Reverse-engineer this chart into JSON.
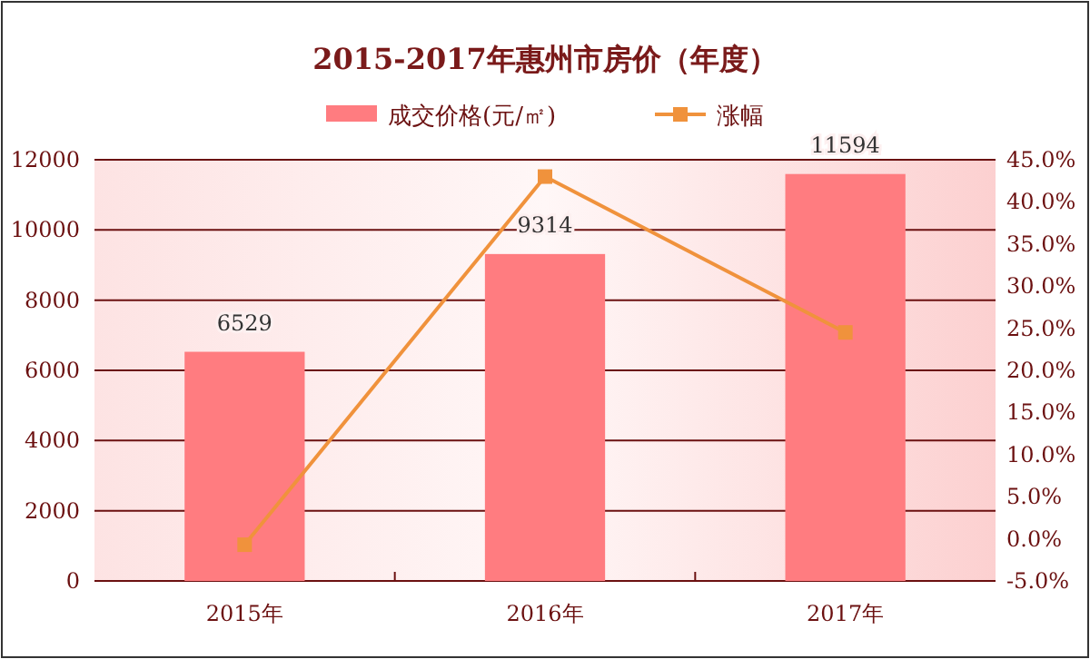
{
  "chart_data": {
    "type": "bar",
    "title": "2015-2017年惠州市房价（年度）",
    "categories": [
      "2015年",
      "2016年",
      "2017年"
    ],
    "series": [
      {
        "name": "成交价格(元/㎡)",
        "color": "#ff7c80",
        "values": [
          6529,
          9314,
          11594
        ],
        "value_labels": [
          "6529",
          "9314",
          "11594"
        ]
      },
      {
        "name": "涨幅",
        "type": "line",
        "axis": "y2",
        "color": "#f0923c",
        "values": [
          -0.7,
          43.0,
          24.5
        ]
      }
    ],
    "ylim": [
      0,
      12000
    ],
    "yticks": [
      0,
      2000,
      4000,
      6000,
      8000,
      10000,
      12000
    ],
    "y2lim": [
      -5,
      45
    ],
    "y2ticks": [
      {
        "value": -5,
        "label": "-5.0%"
      },
      {
        "value": 0,
        "label": "0.0%"
      },
      {
        "value": 5,
        "label": "5.0%"
      },
      {
        "value": 10,
        "label": "10.0%"
      },
      {
        "value": 15,
        "label": "15.0%"
      },
      {
        "value": 20,
        "label": "20.0%"
      },
      {
        "value": 25,
        "label": "25.0%"
      },
      {
        "value": 30,
        "label": "30.0%"
      },
      {
        "value": 35,
        "label": "35.0%"
      },
      {
        "value": 40,
        "label": "40.0%"
      },
      {
        "value": 45,
        "label": "45.0%"
      }
    ],
    "grid": "y",
    "legend": "top",
    "marker": "square",
    "line_style": "solid"
  }
}
